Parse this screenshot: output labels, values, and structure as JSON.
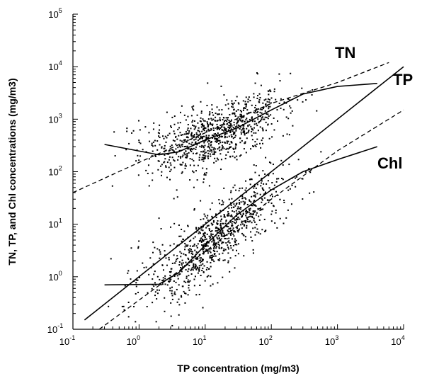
{
  "chart_data": {
    "type": "scatter",
    "xlabel": "TP concentration (mg/m3)",
    "ylabel": "TN, TP, and Chl concentrations (mg/m3)",
    "x_scale": "log",
    "y_scale": "log",
    "xlim": [
      0.1,
      10000
    ],
    "ylim": [
      0.1,
      100000
    ],
    "x_ticks": [
      {
        "base": "10",
        "exp": "-1",
        "value": 0.1
      },
      {
        "base": "10",
        "exp": "0",
        "value": 1
      },
      {
        "base": "10",
        "exp": "1",
        "value": 10
      },
      {
        "base": "10",
        "exp": "2",
        "value": 100
      },
      {
        "base": "10",
        "exp": "3",
        "value": 1000
      },
      {
        "base": "10",
        "exp": "4",
        "value": 10000
      }
    ],
    "y_ticks": [
      {
        "base": "10",
        "exp": "-1",
        "value": 0.1
      },
      {
        "base": "10",
        "exp": "0",
        "value": 1
      },
      {
        "base": "10",
        "exp": "1",
        "value": 10
      },
      {
        "base": "10",
        "exp": "2",
        "value": 100
      },
      {
        "base": "10",
        "exp": "3",
        "value": 1000
      },
      {
        "base": "10",
        "exp": "4",
        "value": 10000
      },
      {
        "base": "10",
        "exp": "5",
        "value": 100000
      }
    ],
    "grid": false,
    "series": [
      {
        "name": "TN",
        "kind": "scatter+fit",
        "fit_solid": [
          [
            0.3,
            330
          ],
          [
            2,
            210
          ],
          [
            4,
            240
          ],
          [
            10,
            400
          ],
          [
            30,
            680
          ],
          [
            100,
            1500
          ],
          [
            300,
            3000
          ],
          [
            1000,
            4200
          ],
          [
            4000,
            4800
          ]
        ],
        "fit_dashed": [
          [
            0.1,
            40
          ],
          [
            1,
            150
          ],
          [
            10,
            550
          ],
          [
            100,
            2000
          ],
          [
            1000,
            5000
          ],
          [
            6000,
            12000
          ]
        ],
        "scatter_trend": [
          [
            0.3,
            250
          ],
          [
            1,
            280
          ],
          [
            3,
            260
          ],
          [
            10,
            400
          ],
          [
            30,
            700
          ],
          [
            100,
            1400
          ],
          [
            300,
            2500
          ],
          [
            1000,
            3800
          ],
          [
            3000,
            4500
          ]
        ]
      },
      {
        "name": "TP",
        "kind": "identity",
        "fit_solid": [
          [
            0.15,
            0.15
          ],
          [
            10000,
            10000
          ]
        ]
      },
      {
        "name": "Chl",
        "kind": "scatter+fit",
        "fit_solid": [
          [
            0.3,
            0.7
          ],
          [
            2,
            0.72
          ],
          [
            4,
            1.2
          ],
          [
            10,
            4
          ],
          [
            30,
            15
          ],
          [
            100,
            45
          ],
          [
            300,
            100
          ],
          [
            1000,
            170
          ],
          [
            4000,
            300
          ]
        ],
        "fit_dashed": [
          [
            0.25,
            0.1
          ],
          [
            10,
            3
          ],
          [
            100,
            30
          ],
          [
            1000,
            250
          ],
          [
            10000,
            1500
          ]
        ],
        "scatter_trend": [
          [
            0.5,
            0.6
          ],
          [
            2,
            0.9
          ],
          [
            4,
            1.3
          ],
          [
            10,
            3.5
          ],
          [
            30,
            12
          ],
          [
            100,
            35
          ],
          [
            300,
            80
          ],
          [
            1000,
            160
          ],
          [
            3000,
            280
          ]
        ]
      }
    ]
  }
}
